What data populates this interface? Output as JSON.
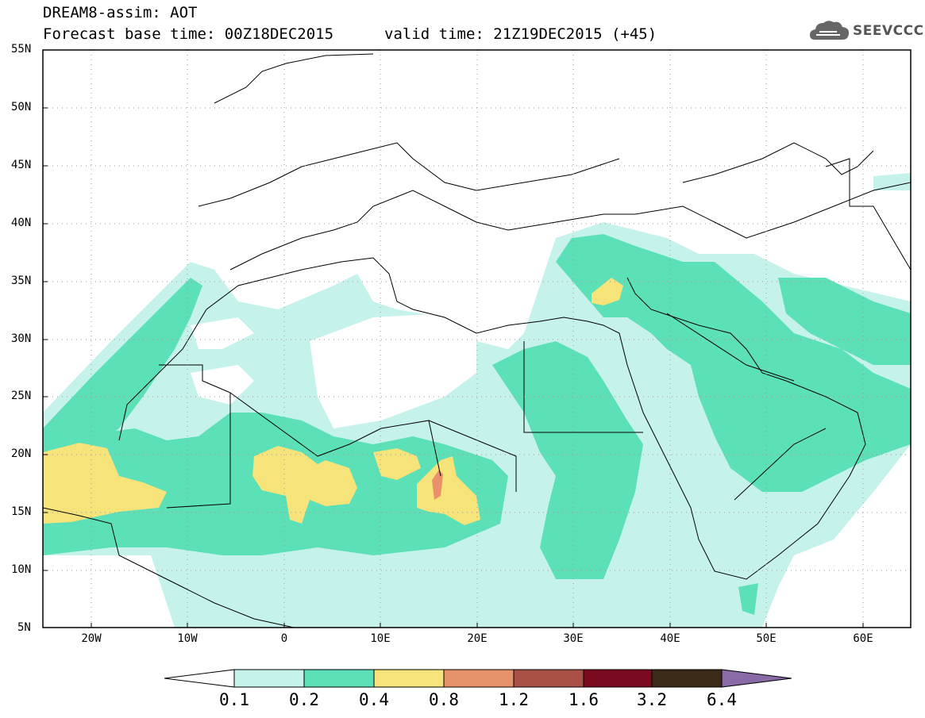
{
  "header": {
    "model_line": "DREAM8-assim: AOT",
    "base_time": "Forecast base time: 00Z18DEC2015",
    "valid_time": "valid time: 21Z19DEC2015 (+45)"
  },
  "logo": {
    "name": "cloud-logo-icon",
    "text": "SEEVCCC"
  },
  "axes": {
    "lat_labels": [
      "55N",
      "50N",
      "45N",
      "40N",
      "35N",
      "30N",
      "25N",
      "20N",
      "15N",
      "10N",
      "5N"
    ],
    "lon_labels": [
      "20W",
      "10W",
      "0",
      "10E",
      "20E",
      "30E",
      "40E",
      "50E",
      "60E"
    ]
  },
  "colorbar": {
    "labels": [
      "0.1",
      "0.2",
      "0.4",
      "0.8",
      "1.2",
      "1.6",
      "3.2",
      "6.4"
    ],
    "colors": [
      "#ffffff",
      "#c6f2ec",
      "#5be0b7",
      "#f6e37a",
      "#e8926c",
      "#a95046",
      "#7a0a20",
      "#3b2a18",
      "#8a6aa6"
    ]
  }
}
